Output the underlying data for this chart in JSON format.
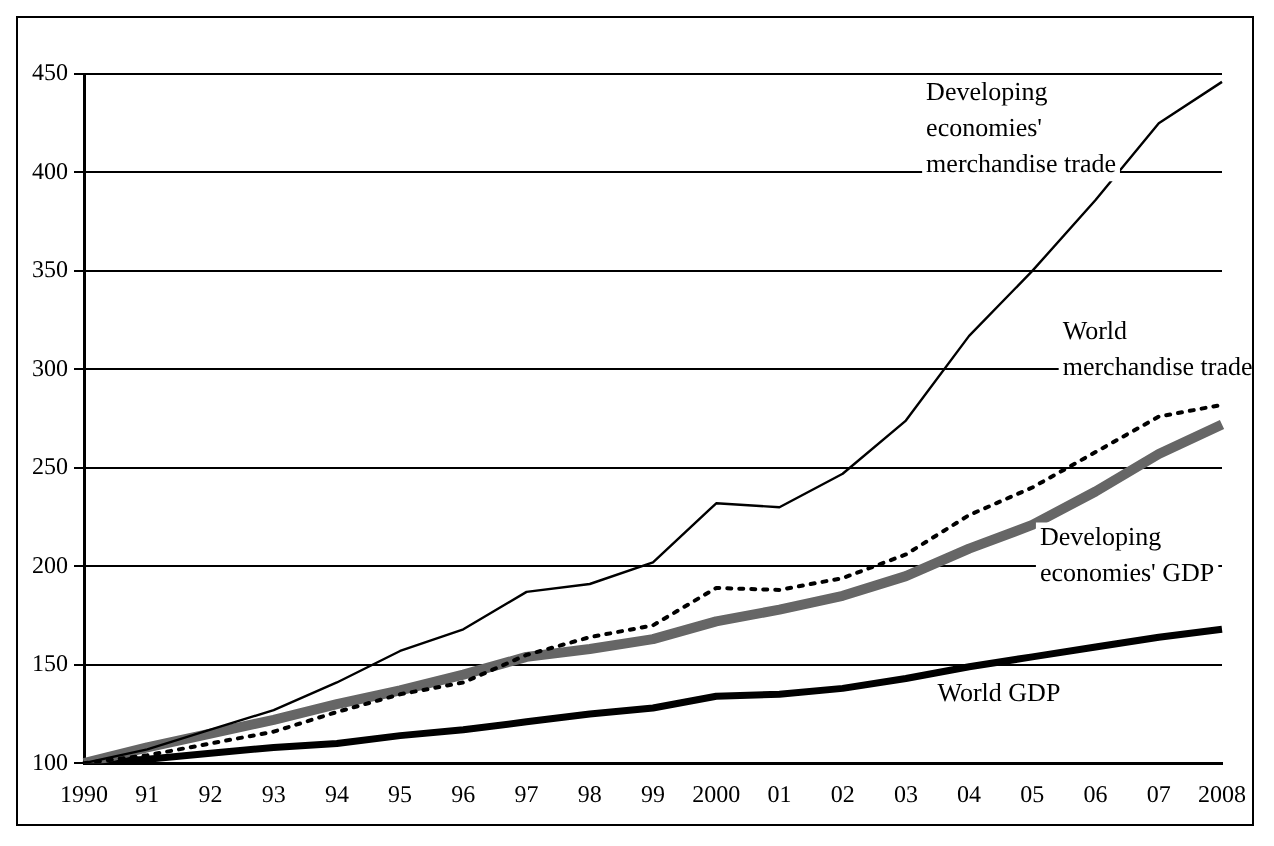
{
  "chart_data": {
    "type": "line",
    "categories": [
      "1990",
      "91",
      "92",
      "93",
      "94",
      "95",
      "96",
      "97",
      "98",
      "99",
      "2000",
      "01",
      "02",
      "03",
      "04",
      "05",
      "06",
      "07",
      "2008"
    ],
    "series": [
      {
        "name": "Developing economies' merchandise trade",
        "color": "#000000",
        "line_style": "solid",
        "values": [
          100,
          107,
          117,
          127,
          141,
          157,
          168,
          187,
          191,
          202,
          232,
          230,
          247,
          274,
          317,
          350,
          386,
          425,
          446
        ]
      },
      {
        "name": "World merchandise trade",
        "color": "#000000",
        "line_style": "dotted",
        "values": [
          100,
          104,
          110,
          116,
          126,
          135,
          141,
          155,
          164,
          170,
          189,
          188,
          194,
          206,
          226,
          240,
          258,
          276,
          282
        ]
      },
      {
        "name": "Developing economies' GDP",
        "color": "#666666",
        "line_style": "solid",
        "values": [
          100,
          108,
          115,
          122,
          130,
          137,
          145,
          154,
          158,
          163,
          172,
          178,
          185,
          195,
          209,
          221,
          238,
          257,
          272
        ]
      },
      {
        "name": "World GDP",
        "color": "#000000",
        "line_style": "solid",
        "values": [
          100,
          102,
          105,
          108,
          110,
          114,
          117,
          121,
          125,
          128,
          134,
          135,
          138,
          143,
          149,
          154,
          159,
          164,
          168
        ]
      }
    ],
    "ylim": [
      100,
      450
    ],
    "yticks": [
      100,
      150,
      200,
      250,
      300,
      350,
      400,
      450
    ],
    "grid": "y",
    "legend": false,
    "marker": "none"
  }
}
